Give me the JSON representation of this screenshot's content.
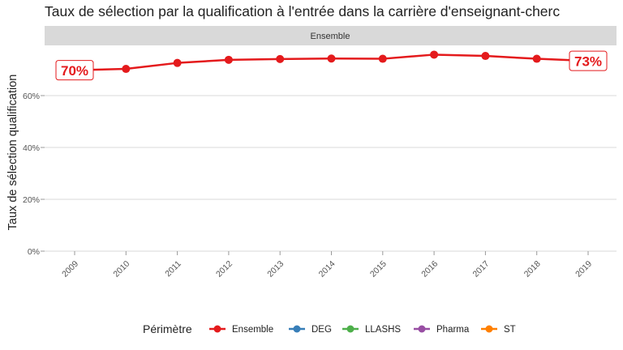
{
  "chart_data": {
    "type": "line",
    "title": "Taux de sélection par la qualification à l'entrée dans la carrière d'enseignant-cherc",
    "facet_label": "Ensemble",
    "xlabel": "",
    "ylabel": "Taux de sélection qualification",
    "x": [
      "2009",
      "2010",
      "2011",
      "2012",
      "2013",
      "2014",
      "2015",
      "2016",
      "2017",
      "2018",
      "2019"
    ],
    "y_ticks": [
      0,
      20,
      40,
      60
    ],
    "y_tick_labels": [
      "0%",
      "20%",
      "40%",
      "60%"
    ],
    "ylim": [
      0,
      77
    ],
    "grid": true,
    "series": [
      {
        "name": "Ensemble",
        "color": "#E41A1C",
        "values": [
          69.8,
          70.3,
          72.6,
          73.8,
          74.1,
          74.3,
          74.2,
          75.8,
          75.3,
          74.2,
          73.4
        ]
      }
    ],
    "annotations": [
      {
        "label": "70%",
        "series": "Ensemble",
        "x": "2009"
      },
      {
        "label": "73%",
        "series": "Ensemble",
        "x": "2019"
      }
    ],
    "legend": {
      "title": "Périmètre",
      "position": "bottom",
      "items": [
        {
          "label": "Ensemble",
          "color": "#E41A1C"
        },
        {
          "label": "DEG",
          "color": "#377EB8"
        },
        {
          "label": "LLASHS",
          "color": "#4DAF4A"
        },
        {
          "label": "Pharma",
          "color": "#984EA3"
        },
        {
          "label": "ST",
          "color": "#FF7F00"
        }
      ]
    }
  }
}
